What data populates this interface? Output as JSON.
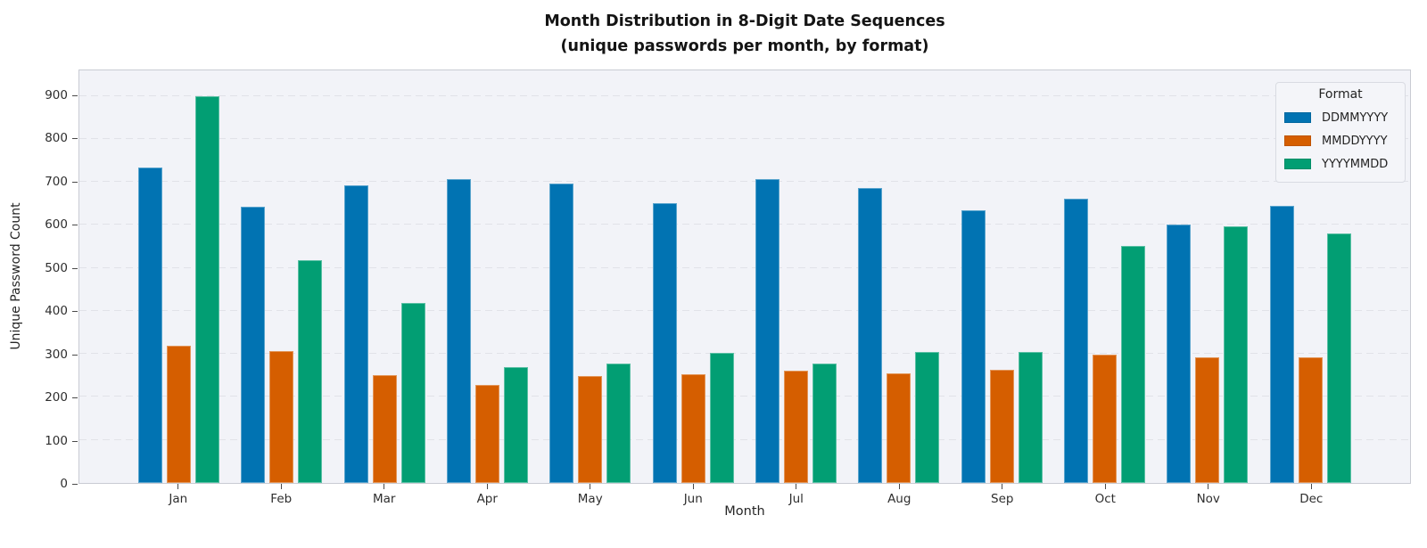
{
  "chart_data": {
    "type": "bar",
    "title": "Month Distribution in 8-Digit Date Sequences",
    "subtitle": "(unique passwords per month, by format)",
    "xlabel": "Month",
    "ylabel": "Unique Password Count",
    "categories": [
      "Jan",
      "Feb",
      "Mar",
      "Apr",
      "May",
      "Jun",
      "Jul",
      "Aug",
      "Sep",
      "Oct",
      "Nov",
      "Dec"
    ],
    "series": [
      {
        "name": "DDMMYYYY",
        "color": "#0173b2",
        "values": [
          734,
          643,
          691,
          707,
          696,
          651,
          707,
          686,
          634,
          660,
          600,
          645
        ]
      },
      {
        "name": "MMDDYYYY",
        "color": "#d55e00",
        "values": [
          318,
          307,
          251,
          228,
          249,
          253,
          262,
          255,
          263,
          298,
          293,
          293
        ]
      },
      {
        "name": "YYYYMMDD",
        "color": "#029e73",
        "values": [
          900,
          518,
          419,
          270,
          277,
          303,
          277,
          304,
          304,
          552,
          596,
          581
        ]
      }
    ],
    "y_ticks": [
      0,
      100,
      200,
      300,
      400,
      500,
      600,
      700,
      800,
      900
    ],
    "ylim": [
      0,
      959
    ],
    "grid": "horizontal-dashed",
    "legend": {
      "title": "Format",
      "position": "top-right"
    }
  },
  "colors": {
    "plot_background": "#f2f3f8",
    "gridline": "#e1e2e8",
    "spine": "#c9cbd3",
    "legend_background": "#f4f5f9",
    "legend_border": "#d9dbe2",
    "series_blue": "#0173b2",
    "series_orange": "#d55e00",
    "series_green": "#029e73"
  }
}
